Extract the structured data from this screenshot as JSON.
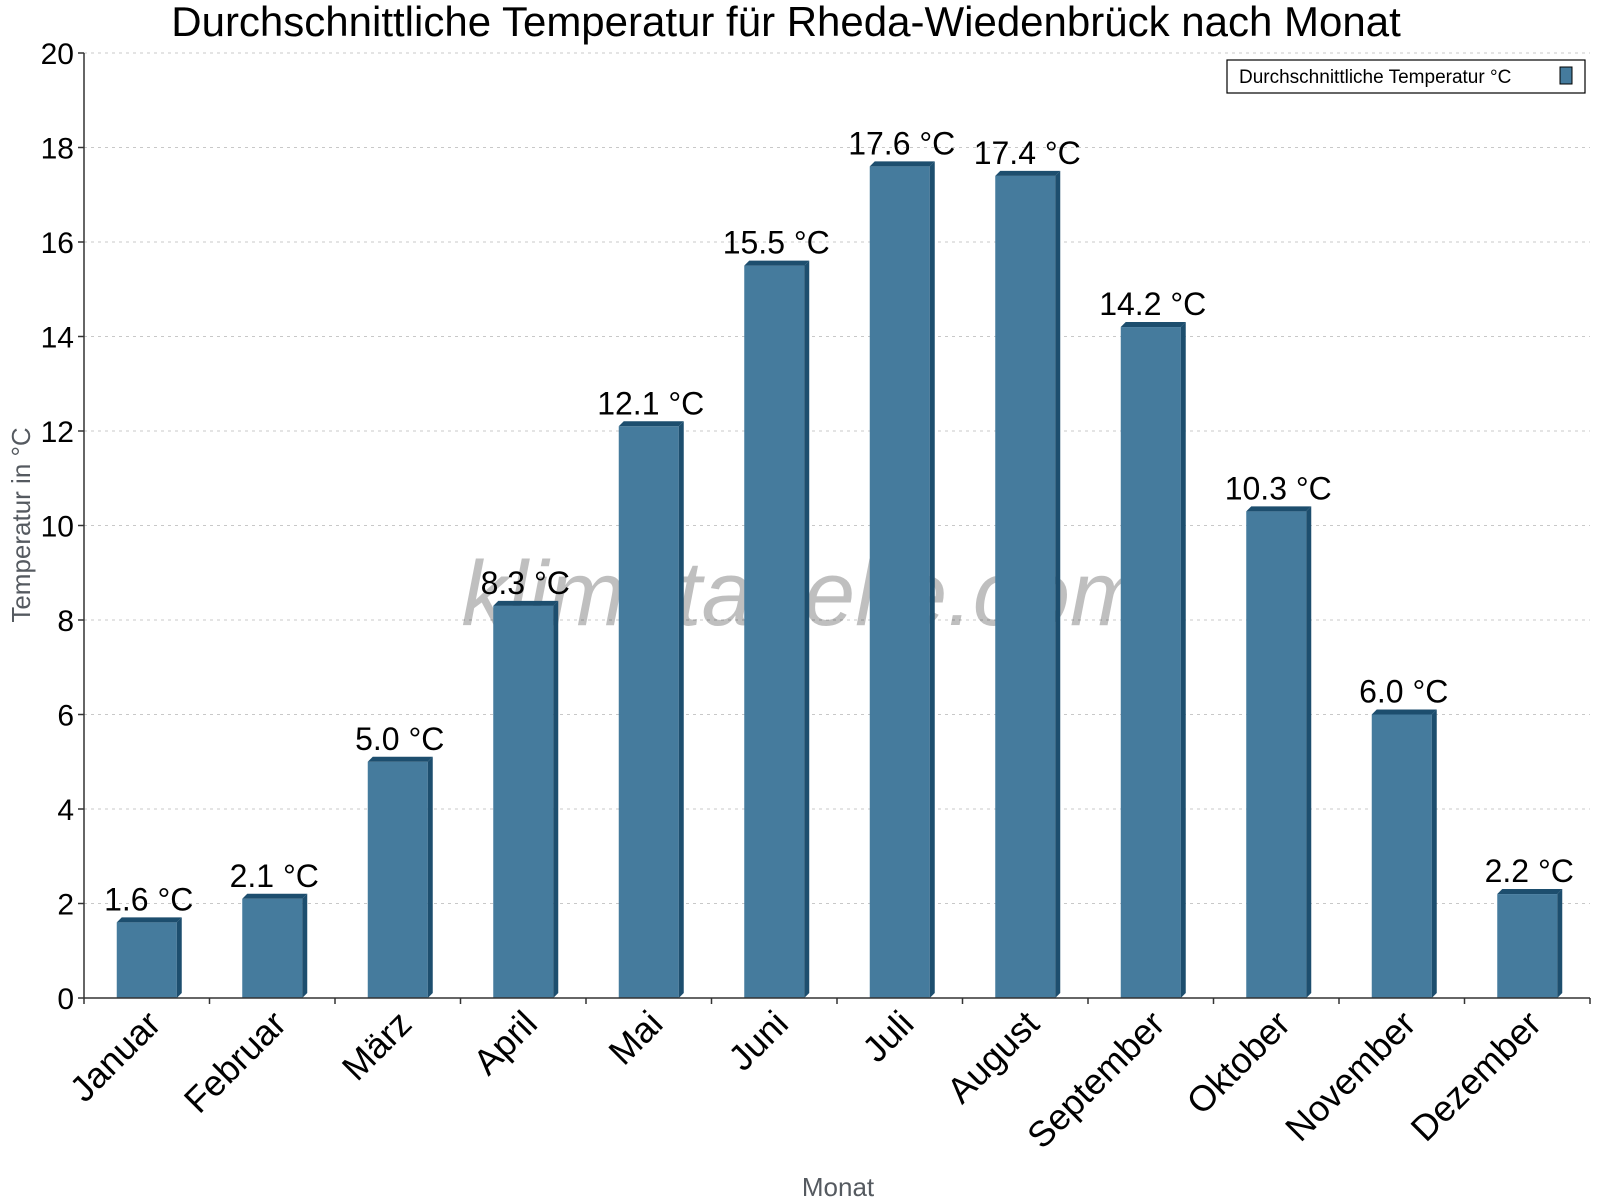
{
  "chart_data": {
    "type": "bar",
    "title": "Durchschnittliche Temperatur für Rheda-Wiedenbrück nach Monat",
    "xlabel": "Monat",
    "ylabel": "Temperatur in °C",
    "ylim": [
      0,
      20
    ],
    "yticks": [
      "0",
      "2",
      "4",
      "6",
      "8",
      "10",
      "12",
      "14",
      "16",
      "18",
      "20"
    ],
    "grid": true,
    "legend_position": "top-right",
    "categories": [
      "Januar",
      "Februar",
      "März",
      "April",
      "Mai",
      "Juni",
      "Juli",
      "August",
      "September",
      "Oktober",
      "November",
      "Dezember"
    ],
    "series": [
      {
        "name": "Durchschnittliche Temperatur °C",
        "values": [
          1.6,
          2.1,
          5.0,
          8.3,
          12.1,
          15.5,
          17.6,
          17.4,
          14.2,
          10.3,
          6.0,
          2.2
        ],
        "labels": [
          "1.6 °C",
          "2.1 °C",
          "5.0 °C",
          "8.3 °C",
          "12.1 °C",
          "15.5 °C",
          "17.6 °C",
          "17.4 °C",
          "14.2 °C",
          "10.3 °C",
          "6.0 °C",
          "2.2 °C"
        ],
        "color": "#457b9d",
        "shade_color": "#1d4e6e"
      }
    ],
    "watermark": "klimatabelle.com"
  }
}
